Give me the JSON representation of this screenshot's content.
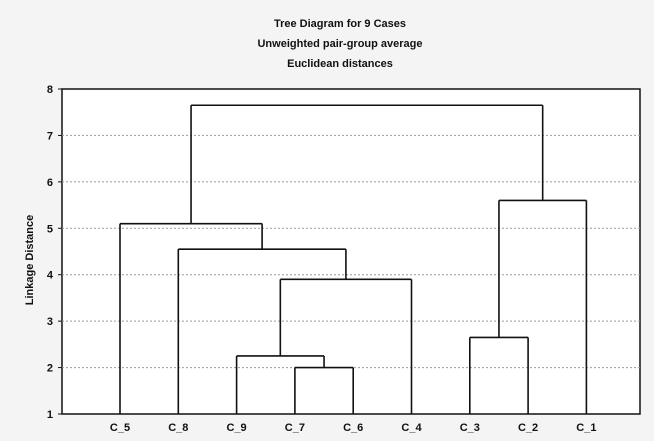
{
  "chart_data": {
    "type": "dendrogram",
    "title": "Tree Diagram for 9 Cases",
    "subtitle_lines": [
      "Unweighted pair-group average",
      "Euclidean distances"
    ],
    "ylabel": "Linkage Distance",
    "xlabel": "",
    "ylim": [
      1,
      8
    ],
    "yticks": [
      1,
      2,
      3,
      4,
      5,
      6,
      7,
      8
    ],
    "grid": true,
    "leaves": [
      "C_5",
      "C_8",
      "C_9",
      "C_7",
      "C_6",
      "C_4",
      "C_3",
      "C_2",
      "C_1"
    ],
    "merges": [
      {
        "left": "C_7",
        "right": "C_6",
        "height": 2.0
      },
      {
        "left": "C_9",
        "right": "C_7+C_6",
        "height": 2.25
      },
      {
        "left": "C_9+C_7+C_6",
        "right": "C_4",
        "height": 3.9
      },
      {
        "left": "C_8",
        "right": "C_9+C_7+C_6+C_4",
        "height": 4.55
      },
      {
        "left": "C_5",
        "right": "C_8+C_9+C_7+C_6+C_4",
        "height": 5.1
      },
      {
        "left": "C_3",
        "right": "C_2",
        "height": 2.65
      },
      {
        "left": "C_3+C_2",
        "right": "C_1",
        "height": 5.6
      },
      {
        "left": "C_5+C_8+C_9+C_7+C_6+C_4",
        "right": "C_3+C_2+C_1",
        "height": 7.65
      }
    ]
  }
}
